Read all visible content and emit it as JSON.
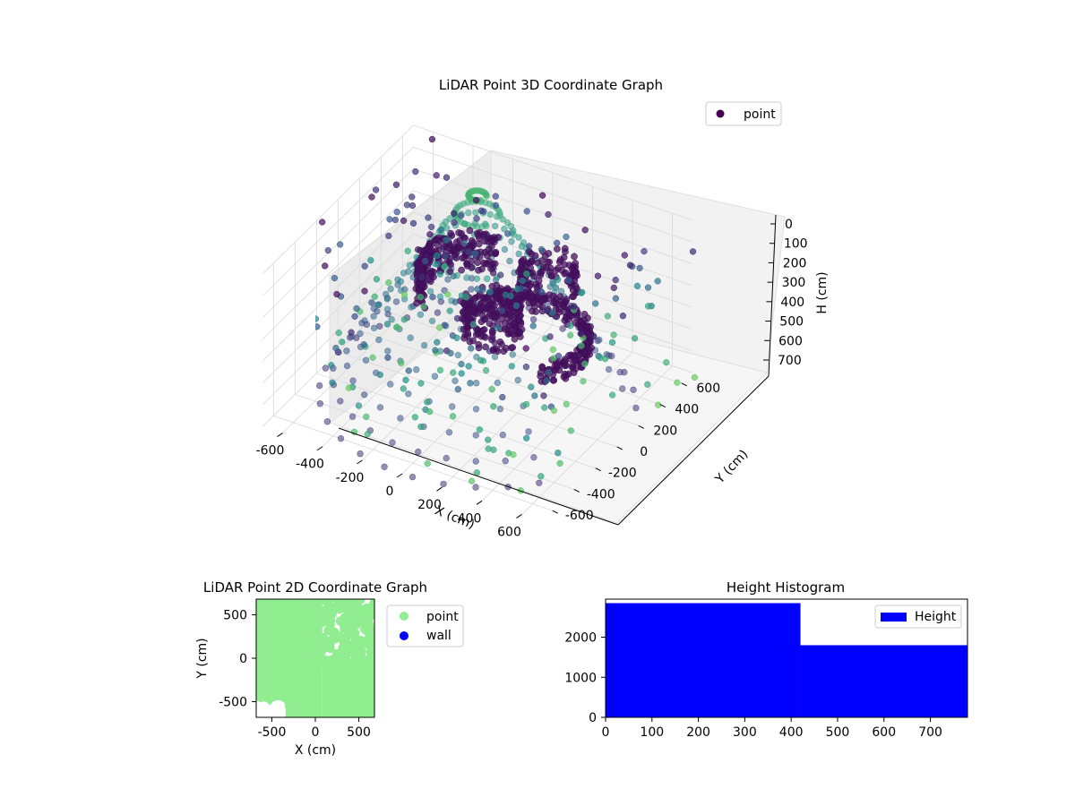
{
  "chart_data": [
    {
      "type": "scatter",
      "projection": "3d",
      "title": "LiDAR Point 3D Coordinate Graph",
      "xlabel": "X (cm)",
      "ylabel": "Y (cm)",
      "zlabel": "H (cm)",
      "x_ticks": [
        -600,
        -400,
        -200,
        0,
        200,
        400,
        600
      ],
      "y_ticks": [
        -600,
        -400,
        -200,
        0,
        200,
        400,
        600
      ],
      "z_ticks": [
        0,
        100,
        200,
        300,
        400,
        500,
        600,
        700
      ],
      "xlim": [
        -700,
        700
      ],
      "ylim": [
        -700,
        700
      ],
      "zlim": [
        0,
        750
      ],
      "z_axis_inverted": true,
      "legend": {
        "entries": [
          "point"
        ],
        "position": "upper-right"
      },
      "colormap": "viridis",
      "grid": true,
      "series": [
        {
          "name": "point",
          "color": "#440154",
          "description_free": true,
          "rings": [
            {
              "radius": 700,
              "height": 0
            },
            {
              "radius": 640,
              "height": 60
            },
            {
              "radius": 580,
              "height": 120
            },
            {
              "radius": 520,
              "height": 180
            },
            {
              "radius": 460,
              "height": 240
            },
            {
              "radius": 400,
              "height": 300
            },
            {
              "radius": 340,
              "height": 360
            },
            {
              "radius": 280,
              "height": 420
            },
            {
              "radius": 220,
              "height": 480
            },
            {
              "radius": 160,
              "height": 540
            },
            {
              "radius": 100,
              "height": 600
            },
            {
              "radius": 40,
              "height": 660
            }
          ]
        }
      ]
    },
    {
      "type": "scatter",
      "title": "LiDAR Point 2D Coordinate Graph",
      "xlabel": "X (cm)",
      "ylabel": "Y (cm)",
      "x_ticks": [
        -500,
        0,
        500
      ],
      "y_ticks": [
        -500,
        0,
        500
      ],
      "xlim": [
        -680,
        680
      ],
      "ylim": [
        -680,
        680
      ],
      "legend": {
        "entries": [
          "point",
          "wall"
        ],
        "position": "outside-right"
      },
      "series": [
        {
          "name": "point",
          "color": "#90ee90"
        },
        {
          "name": "wall",
          "color": "#0000ff"
        }
      ]
    },
    {
      "type": "bar",
      "subtype": "histogram",
      "title": "Height Histogram",
      "x_ticks": [
        0,
        100,
        200,
        300,
        400,
        500,
        600,
        700
      ],
      "y_ticks": [
        0,
        1000,
        2000
      ],
      "xlim": [
        0,
        780
      ],
      "ylim": [
        0,
        2950
      ],
      "legend": {
        "entries": [
          "Height"
        ],
        "position": "upper-right"
      },
      "series": [
        {
          "name": "Height",
          "color": "#0000ff",
          "bins": [
            {
              "from": 0,
              "to": 420,
              "count": 2850
            },
            {
              "from": 420,
              "to": 780,
              "count": 1800
            }
          ]
        }
      ]
    }
  ]
}
